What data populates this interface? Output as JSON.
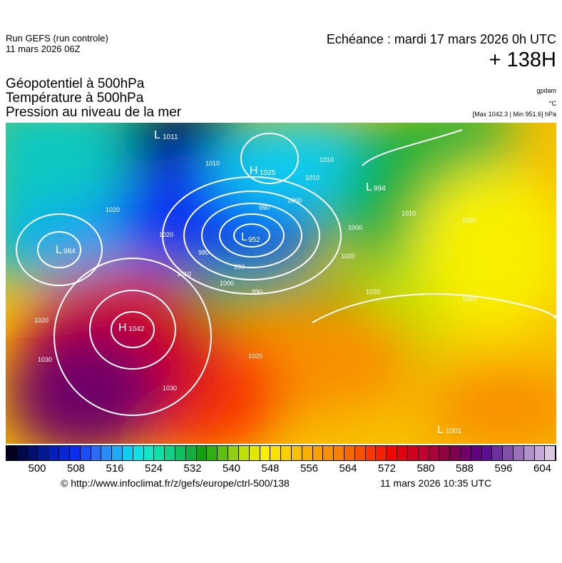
{
  "header": {
    "run": "Run GEFS (run controle)",
    "run_date": "11 mars 2026 06Z",
    "valid": "Echéance : mardi 17 mars 2026 0h UTC",
    "lead": "+ 138H",
    "fields": [
      "Géopotentiel à 500hPa",
      "Température à 500hPa",
      "Pression au niveau de la mer"
    ],
    "units": [
      "gpdam",
      "°C",
      "[Max 1042.3 | Min 951.6] hPa"
    ]
  },
  "map": {
    "centers": [
      {
        "type": "L",
        "value": "1011"
      },
      {
        "type": "H",
        "value": "1025"
      },
      {
        "type": "L",
        "value": "994"
      },
      {
        "type": "L",
        "value": "952"
      },
      {
        "type": "L",
        "value": "984"
      },
      {
        "type": "H",
        "value": "1042"
      },
      {
        "type": "L",
        "value": "1001"
      }
    ],
    "isobar_labels": [
      "1010",
      "990",
      "1000",
      "1010",
      "990",
      "980",
      "1000",
      "990",
      "1010",
      "1020",
      "1020",
      "1020",
      "1020",
      "1030",
      "1030",
      "1020",
      "1000",
      "1010",
      "1020",
      "1020",
      "1020",
      "1010"
    ]
  },
  "colorbar": {
    "ticks": [
      "500",
      "508",
      "516",
      "524",
      "532",
      "540",
      "548",
      "556",
      "564",
      "572",
      "580",
      "588",
      "596",
      "604"
    ],
    "colors": [
      "#03001f",
      "#000a4a",
      "#001070",
      "#001a96",
      "#0020b8",
      "#0028d8",
      "#0a2ef0",
      "#1a4cf8",
      "#2a6cf8",
      "#2a8cf8",
      "#1aacf8",
      "#10ccf0",
      "#10e0e0",
      "#10e8c8",
      "#10e0a8",
      "#10d088",
      "#10c060",
      "#10b040",
      "#10a010",
      "#30b010",
      "#60c010",
      "#90d010",
      "#c0e000",
      "#e0e800",
      "#f8f000",
      "#f8e000",
      "#f8d000",
      "#f8c000",
      "#f8b000",
      "#f8a000",
      "#f89000",
      "#f88000",
      "#f86800",
      "#f85000",
      "#f83800",
      "#f82000",
      "#f00800",
      "#e00010",
      "#d00020",
      "#c00030",
      "#a80038",
      "#900040",
      "#800050",
      "#700068",
      "#600080",
      "#5a1090",
      "#6a30a0",
      "#8050a8",
      "#9a70b8",
      "#b090c8",
      "#c8a8d8",
      "#d8c8e0"
    ]
  },
  "footer": {
    "url": "© http://www.infoclimat.fr/z/gefs/europe/ctrl-500/138",
    "generated": "11 mars 2026 10:35 UTC"
  }
}
